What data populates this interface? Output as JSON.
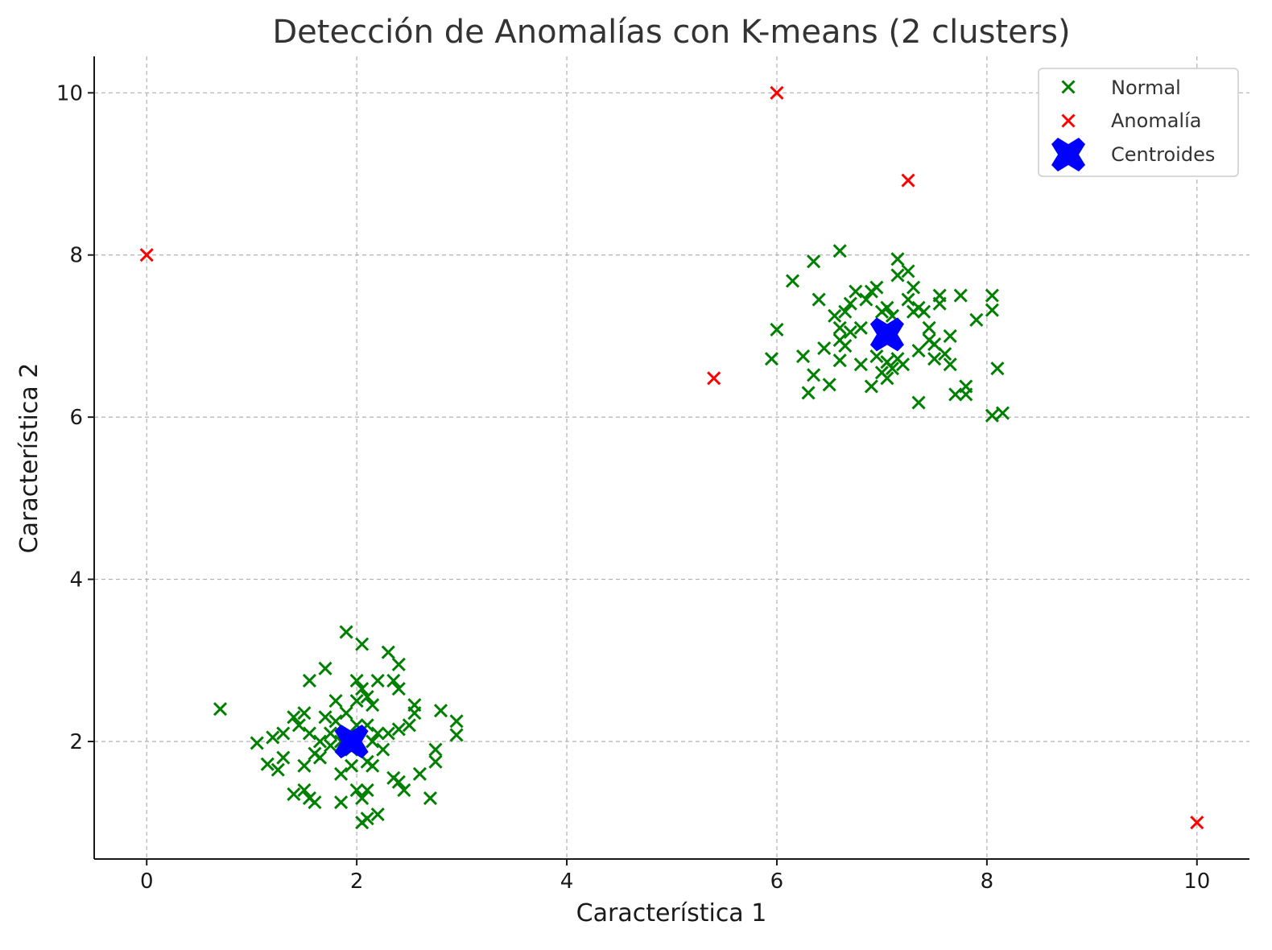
{
  "chart_data": {
    "type": "scatter",
    "title": "Detección de Anomalías con K-means (2 clusters)",
    "xlabel": "Característica 1",
    "ylabel": "Característica 2",
    "xlim": [
      -0.5,
      10.5
    ],
    "ylim": [
      0.55,
      10.45
    ],
    "xticks": [
      0,
      2,
      4,
      6,
      8,
      10
    ],
    "yticks": [
      2,
      4,
      6,
      8,
      10
    ],
    "grid": true,
    "legend_position": "top-right",
    "series": [
      {
        "name": "Normal",
        "marker": "x",
        "color": "#008000",
        "points": [
          [
            0.7,
            2.4
          ],
          [
            1.05,
            1.98
          ],
          [
            1.15,
            1.72
          ],
          [
            1.2,
            2.05
          ],
          [
            1.25,
            1.65
          ],
          [
            1.3,
            1.8
          ],
          [
            1.3,
            2.1
          ],
          [
            1.4,
            2.3
          ],
          [
            1.4,
            1.35
          ],
          [
            1.45,
            2.2
          ],
          [
            1.5,
            2.35
          ],
          [
            1.5,
            1.7
          ],
          [
            1.5,
            1.4
          ],
          [
            1.55,
            2.1
          ],
          [
            1.55,
            1.3
          ],
          [
            1.55,
            2.75
          ],
          [
            1.6,
            1.85
          ],
          [
            1.6,
            1.25
          ],
          [
            1.65,
            2.0
          ],
          [
            1.65,
            1.8
          ],
          [
            1.7,
            2.3
          ],
          [
            1.7,
            2.9
          ],
          [
            1.75,
            1.95
          ],
          [
            1.75,
            2.1
          ],
          [
            1.8,
            2.5
          ],
          [
            1.8,
            2.25
          ],
          [
            1.85,
            2.0
          ],
          [
            1.85,
            1.6
          ],
          [
            1.85,
            1.25
          ],
          [
            1.9,
            3.35
          ],
          [
            1.9,
            2.35
          ],
          [
            1.95,
            1.7
          ],
          [
            1.95,
            1.9
          ],
          [
            2.0,
            2.75
          ],
          [
            2.0,
            2.5
          ],
          [
            2.0,
            2.2
          ],
          [
            2.0,
            1.4
          ],
          [
            2.05,
            3.2
          ],
          [
            2.05,
            2.65
          ],
          [
            2.05,
            1.3
          ],
          [
            2.05,
            1.0
          ],
          [
            2.1,
            2.55
          ],
          [
            2.1,
            2.2
          ],
          [
            2.1,
            1.75
          ],
          [
            2.1,
            1.4
          ],
          [
            2.1,
            1.05
          ],
          [
            2.15,
            2.45
          ],
          [
            2.15,
            2.0
          ],
          [
            2.15,
            1.7
          ],
          [
            2.2,
            2.75
          ],
          [
            2.2,
            2.1
          ],
          [
            2.2,
            1.1
          ],
          [
            2.25,
            1.9
          ],
          [
            2.3,
            3.1
          ],
          [
            2.3,
            2.1
          ],
          [
            2.35,
            2.75
          ],
          [
            2.35,
            1.55
          ],
          [
            2.4,
            2.95
          ],
          [
            2.4,
            2.65
          ],
          [
            2.4,
            2.15
          ],
          [
            2.4,
            1.5
          ],
          [
            2.45,
            1.4
          ],
          [
            2.5,
            2.2
          ],
          [
            2.55,
            2.45
          ],
          [
            2.55,
            2.35
          ],
          [
            2.6,
            1.6
          ],
          [
            2.7,
            1.3
          ],
          [
            2.75,
            1.9
          ],
          [
            2.75,
            1.75
          ],
          [
            2.8,
            2.38
          ],
          [
            2.95,
            2.25
          ],
          [
            2.95,
            2.08
          ],
          [
            5.95,
            6.72
          ],
          [
            6.0,
            7.08
          ],
          [
            6.15,
            7.68
          ],
          [
            6.25,
            6.75
          ],
          [
            6.3,
            6.3
          ],
          [
            6.35,
            6.52
          ],
          [
            6.35,
            7.92
          ],
          [
            6.4,
            7.45
          ],
          [
            6.45,
            6.85
          ],
          [
            6.5,
            6.4
          ],
          [
            6.55,
            7.25
          ],
          [
            6.6,
            8.05
          ],
          [
            6.6,
            7.1
          ],
          [
            6.6,
            6.95
          ],
          [
            6.6,
            6.7
          ],
          [
            6.65,
            7.3
          ],
          [
            6.65,
            6.88
          ],
          [
            6.7,
            7.4
          ],
          [
            6.7,
            7.05
          ],
          [
            6.75,
            7.55
          ],
          [
            6.8,
            7.1
          ],
          [
            6.8,
            6.65
          ],
          [
            6.85,
            7.45
          ],
          [
            6.9,
            7.55
          ],
          [
            6.9,
            6.38
          ],
          [
            6.95,
            7.6
          ],
          [
            6.95,
            6.75
          ],
          [
            7.0,
            7.3
          ],
          [
            7.0,
            6.55
          ],
          [
            7.05,
            7.35
          ],
          [
            7.05,
            6.95
          ],
          [
            7.05,
            6.68
          ],
          [
            7.05,
            6.48
          ],
          [
            7.1,
            7.25
          ],
          [
            7.1,
            6.6
          ],
          [
            7.15,
            7.95
          ],
          [
            7.15,
            7.75
          ],
          [
            7.15,
            6.72
          ],
          [
            7.2,
            6.65
          ],
          [
            7.25,
            7.8
          ],
          [
            7.25,
            7.45
          ],
          [
            7.3,
            7.6
          ],
          [
            7.3,
            7.3
          ],
          [
            7.35,
            7.35
          ],
          [
            7.35,
            6.82
          ],
          [
            7.35,
            6.18
          ],
          [
            7.4,
            7.3
          ],
          [
            7.45,
            7.1
          ],
          [
            7.45,
            6.95
          ],
          [
            7.5,
            6.9
          ],
          [
            7.5,
            6.72
          ],
          [
            7.55,
            7.5
          ],
          [
            7.55,
            7.4
          ],
          [
            7.6,
            6.78
          ],
          [
            7.65,
            7.0
          ],
          [
            7.65,
            6.65
          ],
          [
            7.7,
            6.28
          ],
          [
            7.75,
            7.5
          ],
          [
            7.8,
            6.38
          ],
          [
            7.8,
            6.28
          ],
          [
            7.9,
            7.2
          ],
          [
            8.05,
            7.5
          ],
          [
            8.05,
            7.32
          ],
          [
            8.05,
            6.02
          ],
          [
            8.1,
            6.6
          ],
          [
            8.15,
            6.05
          ]
        ]
      },
      {
        "name": "Anomalía",
        "marker": "x",
        "color": "#ff0000",
        "points": [
          [
            0,
            8
          ],
          [
            6,
            10
          ],
          [
            7.25,
            8.92
          ],
          [
            5.4,
            6.48
          ],
          [
            10,
            1
          ]
        ]
      },
      {
        "name": "Centroides",
        "marker": "X",
        "color": "#0000ff",
        "points": [
          [
            1.95,
            2.0
          ],
          [
            7.05,
            7.02
          ]
        ]
      }
    ]
  }
}
